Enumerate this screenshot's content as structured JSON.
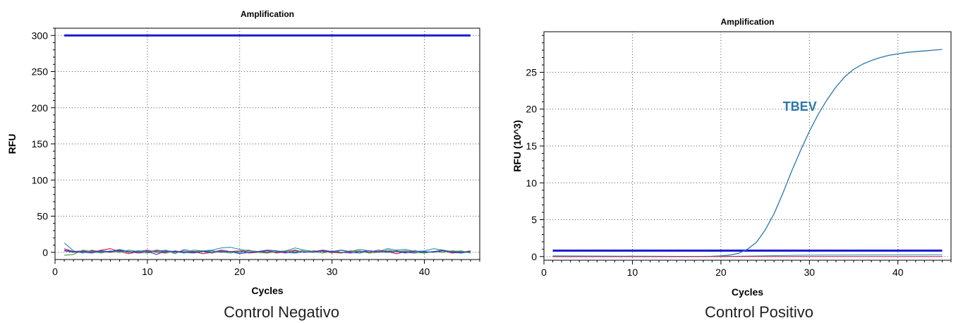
{
  "captions": {
    "left": "Control Negativo",
    "right": "Control Positivo"
  },
  "colors": {
    "threshold": "#1a1ad6",
    "tbev": "#2a77a8",
    "noise": [
      "#2a8fb0",
      "#cc1f4a",
      "#7a2aa0",
      "#3a9a3a",
      "#2050c0",
      "#c07020"
    ]
  },
  "chart_data": [
    {
      "type": "line",
      "title": "Amplification",
      "xlabel": "Cycles",
      "ylabel": "RFU",
      "xlim": [
        0,
        46
      ],
      "ylim": [
        -10,
        310
      ],
      "xticks": [
        0,
        10,
        20,
        30,
        40
      ],
      "yticks": [
        0,
        50,
        100,
        150,
        200,
        250,
        300
      ],
      "grid": true,
      "series": [
        {
          "role": "threshold",
          "x": [
            1,
            45
          ],
          "values": [
            300,
            300
          ]
        },
        {
          "role": "noise",
          "x": [
            1,
            2,
            3,
            4,
            5,
            6,
            7,
            8,
            9,
            10,
            11,
            12,
            13,
            14,
            15,
            16,
            17,
            18,
            19,
            20,
            21,
            22,
            23,
            24,
            25,
            26,
            27,
            28,
            29,
            30,
            31,
            32,
            33,
            34,
            35,
            36,
            37,
            38,
            39,
            40,
            41,
            42,
            43,
            44,
            45
          ],
          "values": [
            13,
            2,
            -1,
            3,
            0,
            1,
            4,
            1,
            0,
            2,
            1,
            3,
            -2,
            4,
            1,
            2,
            3,
            6,
            7,
            4,
            2,
            1,
            3,
            0,
            2,
            6,
            3,
            1,
            2,
            -1,
            3,
            1,
            4,
            2,
            1,
            5,
            3,
            4,
            1,
            2,
            5,
            3,
            1,
            2,
            -1
          ]
        },
        {
          "role": "noise",
          "x": [
            1,
            2,
            3,
            4,
            5,
            6,
            7,
            8,
            9,
            10,
            11,
            12,
            13,
            14,
            15,
            16,
            17,
            18,
            19,
            20,
            21,
            22,
            23,
            24,
            25,
            26,
            27,
            28,
            29,
            30,
            31,
            32,
            33,
            34,
            35,
            36,
            37,
            38,
            39,
            40,
            41,
            42,
            43,
            44,
            45
          ],
          "values": [
            5,
            1,
            2,
            0,
            3,
            5,
            1,
            -2,
            1,
            3,
            0,
            -1,
            2,
            0,
            1,
            -2,
            0,
            3,
            1,
            2,
            -1,
            0,
            2,
            -1,
            1,
            3,
            0,
            2,
            1,
            0,
            -1,
            2,
            1,
            0,
            3,
            1,
            -2,
            1,
            2,
            0,
            1,
            2,
            -1,
            0,
            2
          ]
        },
        {
          "role": "noise",
          "x": [
            1,
            2,
            3,
            4,
            5,
            6,
            7,
            8,
            9,
            10,
            11,
            12,
            13,
            14,
            15,
            16,
            17,
            18,
            19,
            20,
            21,
            22,
            23,
            24,
            25,
            26,
            27,
            28,
            29,
            30,
            31,
            32,
            33,
            34,
            35,
            36,
            37,
            38,
            39,
            40,
            41,
            42,
            43,
            44,
            45
          ],
          "values": [
            2,
            0,
            1,
            2,
            1,
            0,
            2,
            1,
            -1,
            0,
            3,
            1,
            0,
            2,
            0,
            1,
            -1,
            2,
            1,
            0,
            2,
            1,
            0,
            1,
            -1,
            2,
            0,
            1,
            3,
            1,
            0,
            -1,
            1,
            2,
            0,
            1,
            2,
            0,
            -1,
            1,
            0,
            2,
            1,
            0,
            1
          ]
        },
        {
          "role": "noise",
          "x": [
            1,
            2,
            3,
            4,
            5,
            6,
            7,
            8,
            9,
            10,
            11,
            12,
            13,
            14,
            15,
            16,
            17,
            18,
            19,
            20,
            21,
            22,
            23,
            24,
            25,
            26,
            27,
            28,
            29,
            30,
            31,
            32,
            33,
            34,
            35,
            36,
            37,
            38,
            39,
            40,
            41,
            42,
            43,
            44,
            45
          ],
          "values": [
            -4,
            -3,
            3,
            1,
            -1,
            2,
            0,
            3,
            1,
            -1,
            2,
            0,
            1,
            -1,
            3,
            2,
            0,
            1,
            -1,
            2,
            3,
            0,
            -1,
            1,
            2,
            0,
            3,
            1,
            -1,
            2,
            0,
            1,
            2,
            -1,
            0,
            3,
            1,
            2,
            0,
            -1,
            1,
            0,
            2,
            1,
            0
          ]
        },
        {
          "role": "noise",
          "x": [
            1,
            2,
            3,
            4,
            5,
            6,
            7,
            8,
            9,
            10,
            11,
            12,
            13,
            14,
            15,
            16,
            17,
            18,
            19,
            20,
            21,
            22,
            23,
            24,
            25,
            26,
            27,
            28,
            29,
            30,
            31,
            32,
            33,
            34,
            35,
            36,
            37,
            38,
            39,
            40,
            41,
            42,
            43,
            44,
            45
          ],
          "values": [
            3,
            1,
            0,
            -1,
            2,
            1,
            3,
            0,
            2,
            1,
            -3,
            2,
            1,
            0,
            -1,
            1,
            2,
            0,
            1,
            -2,
            0,
            1,
            3,
            2,
            0,
            -1,
            1,
            0,
            2,
            1,
            3,
            0,
            -1,
            2,
            1,
            0,
            1,
            -1,
            2,
            0,
            1,
            3,
            0,
            -1,
            1
          ]
        }
      ]
    },
    {
      "type": "line",
      "title": "Amplification",
      "xlabel": "Cycles",
      "ylabel": "RFU (10^3)",
      "xlim": [
        0,
        46
      ],
      "ylim": [
        -0.5,
        30.5
      ],
      "xticks": [
        0,
        10,
        20,
        30,
        40
      ],
      "yticks": [
        0,
        5,
        10,
        15,
        20,
        25
      ],
      "grid": true,
      "annotation": "TBEV",
      "series": [
        {
          "role": "threshold",
          "x": [
            1,
            45
          ],
          "values": [
            0.8,
            0.8
          ]
        },
        {
          "role": "tbev",
          "name": "TBEV",
          "x": [
            1,
            2,
            3,
            4,
            5,
            6,
            7,
            8,
            9,
            10,
            11,
            12,
            13,
            14,
            15,
            16,
            17,
            18,
            19,
            20,
            21,
            22,
            23,
            24,
            25,
            26,
            27,
            28,
            29,
            30,
            31,
            32,
            33,
            34,
            35,
            36,
            37,
            38,
            39,
            40,
            41,
            42,
            43,
            44,
            45
          ],
          "values": [
            0,
            0,
            0,
            0,
            0,
            0,
            0,
            0,
            0,
            0,
            0,
            0,
            0,
            0,
            0,
            0,
            0.01,
            0.02,
            0.04,
            0.08,
            0.2,
            0.45,
            1.0,
            1.9,
            3.6,
            5.8,
            8.6,
            11.6,
            14.4,
            17.0,
            19.3,
            21.3,
            23.0,
            24.4,
            25.4,
            26.1,
            26.6,
            27.0,
            27.3,
            27.5,
            27.7,
            27.8,
            27.9,
            28.0,
            28.1
          ]
        },
        {
          "role": "baseline",
          "x": [
            1,
            20,
            30,
            45
          ],
          "values": [
            0.1,
            0.0,
            0.2,
            0.25
          ]
        },
        {
          "role": "baseline",
          "x": [
            1,
            45
          ],
          "values": [
            0.0,
            0.0
          ]
        }
      ]
    }
  ]
}
